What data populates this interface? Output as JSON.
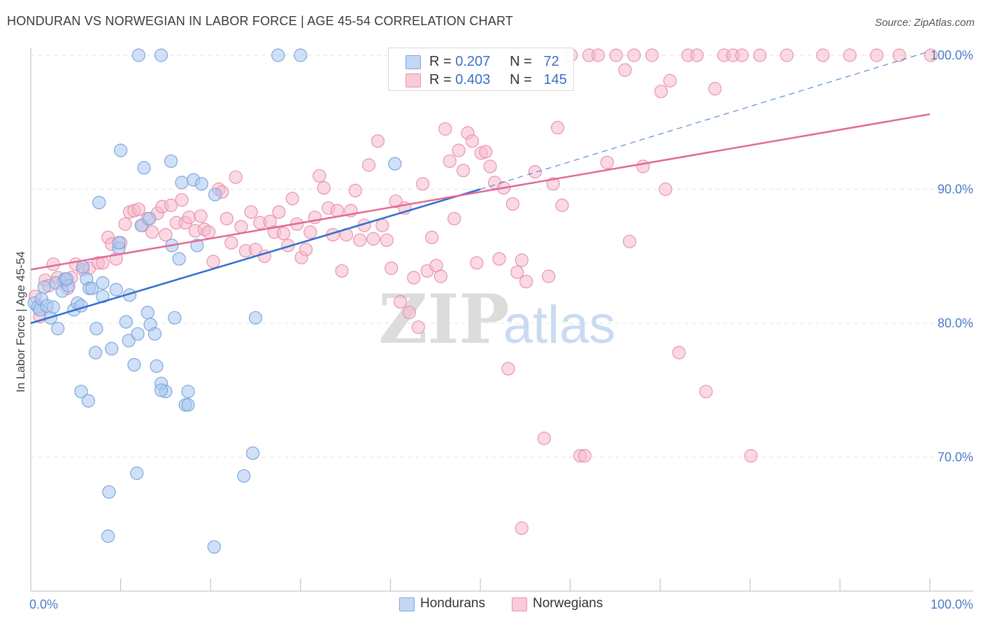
{
  "title": "HONDURAN VS NORWEGIAN IN LABOR FORCE | AGE 45-54 CORRELATION CHART",
  "source": "Source: ZipAtlas.com",
  "watermark": {
    "zip": "ZIP",
    "atlas": "atlas"
  },
  "colors": {
    "hondurans_fill": "#aac8f0",
    "hondurans_stroke": "#7fa6dc",
    "hondurans_line": "#2f6fcf",
    "norwegians_fill": "#f6b9cb",
    "norwegians_stroke": "#ea93ad",
    "norwegians_line": "#e26a97",
    "tick_label": "#4a7cc9",
    "grid": "#e3e3e3"
  },
  "legend_top": {
    "rows": [
      {
        "r_label": "R =",
        "r_value": "0.207",
        "n_label": "N =",
        "n_value": "72"
      },
      {
        "r_label": "R =",
        "r_value": "0.403",
        "n_label": "N =",
        "n_value": "145"
      }
    ]
  },
  "legend_bottom": {
    "items": [
      {
        "label": "Hondurans"
      },
      {
        "label": "Norwegians"
      }
    ]
  },
  "chart_data": {
    "type": "scatter",
    "title": "HONDURAN VS NORWEGIAN IN LABOR FORCE | AGE 45-54 CORRELATION CHART",
    "xlabel": "",
    "ylabel": "In Labor Force | Age 45-54",
    "xlim": [
      0,
      100
    ],
    "ylim": [
      61,
      103
    ],
    "x_tick_labels": [
      {
        "value": 0,
        "label": "0.0%"
      },
      {
        "value": 100,
        "label": "100.0%"
      }
    ],
    "y_tick_labels": [
      {
        "value": 100,
        "label": "100.0%"
      },
      {
        "value": 90,
        "label": "90.0%"
      },
      {
        "value": 80,
        "label": "80.0%"
      },
      {
        "value": 70,
        "label": "70.0%"
      }
    ],
    "grid": true,
    "legend_position": "bottom",
    "series": [
      {
        "name": "Hondurans",
        "r": 0.207,
        "n": 72,
        "trend": {
          "x": [
            0,
            50
          ],
          "y": [
            80.0,
            90.0
          ]
        },
        "trend_extension": {
          "x": [
            50,
            100
          ],
          "y": [
            90.0,
            100.3
          ]
        },
        "points": [
          [
            0.4,
            81.5
          ],
          [
            0.8,
            81.2
          ],
          [
            1.0,
            81.0
          ],
          [
            1.2,
            81.8
          ],
          [
            1.5,
            82.7
          ],
          [
            1.8,
            81.3
          ],
          [
            2.2,
            80.4
          ],
          [
            2.5,
            81.2
          ],
          [
            2.8,
            83.0
          ],
          [
            3.0,
            79.6
          ],
          [
            3.5,
            82.4
          ],
          [
            3.8,
            83.3
          ],
          [
            4.2,
            82.8
          ],
          [
            4.8,
            81.0
          ],
          [
            5.2,
            81.5
          ],
          [
            5.6,
            81.3
          ],
          [
            5.8,
            84.2
          ],
          [
            6.2,
            83.3
          ],
          [
            6.5,
            82.6
          ],
          [
            6.8,
            82.6
          ],
          [
            7.3,
            79.6
          ],
          [
            7.2,
            77.8
          ],
          [
            7.6,
            89.0
          ],
          [
            8.0,
            82.0
          ],
          [
            8.0,
            83.0
          ],
          [
            9.0,
            78.1
          ],
          [
            9.5,
            82.5
          ],
          [
            9.8,
            85.6
          ],
          [
            10.0,
            92.9
          ],
          [
            10.6,
            80.1
          ],
          [
            10.9,
            78.7
          ],
          [
            11.0,
            82.1
          ],
          [
            11.5,
            76.9
          ],
          [
            11.9,
            79.2
          ],
          [
            12.3,
            87.3
          ],
          [
            12.6,
            91.6
          ],
          [
            13.0,
            80.8
          ],
          [
            13.2,
            87.8
          ],
          [
            13.3,
            79.9
          ],
          [
            13.8,
            79.2
          ],
          [
            14.0,
            76.8
          ],
          [
            14.5,
            75.5
          ],
          [
            15.0,
            74.9
          ],
          [
            15.7,
            85.8
          ],
          [
            16.0,
            80.4
          ],
          [
            15.6,
            92.1
          ],
          [
            16.5,
            84.8
          ],
          [
            16.8,
            90.5
          ],
          [
            17.5,
            74.9
          ],
          [
            17.2,
            73.9
          ],
          [
            18.1,
            90.7
          ],
          [
            18.5,
            85.8
          ],
          [
            20.5,
            89.6
          ],
          [
            5.6,
            74.9
          ],
          [
            6.4,
            74.2
          ],
          [
            14.5,
            75.0
          ],
          [
            17.5,
            73.9
          ],
          [
            11.8,
            68.8
          ],
          [
            8.7,
            67.4
          ],
          [
            8.6,
            64.1
          ],
          [
            20.4,
            63.3
          ],
          [
            23.7,
            68.6
          ],
          [
            24.7,
            70.3
          ],
          [
            12.0,
            100.0
          ],
          [
            14.5,
            100.0
          ],
          [
            27.5,
            100.0
          ],
          [
            30.0,
            100.0
          ],
          [
            40.5,
            91.9
          ],
          [
            25.0,
            80.4
          ],
          [
            9.8,
            86.0
          ],
          [
            19.0,
            90.4
          ],
          [
            4.0,
            83.3
          ]
        ]
      },
      {
        "name": "Norwegians",
        "r": 0.403,
        "n": 145,
        "trend": {
          "x": [
            0,
            100
          ],
          "y": [
            84.0,
            95.6
          ]
        },
        "points": [
          [
            0.5,
            82.0
          ],
          [
            1.0,
            80.5
          ],
          [
            1.6,
            83.2
          ],
          [
            2.0,
            82.8
          ],
          [
            2.5,
            84.4
          ],
          [
            3.0,
            83.4
          ],
          [
            3.6,
            83.1
          ],
          [
            4.1,
            82.6
          ],
          [
            4.5,
            83.4
          ],
          [
            5.0,
            84.4
          ],
          [
            5.8,
            84.0
          ],
          [
            6.5,
            84.1
          ],
          [
            7.5,
            84.5
          ],
          [
            8.0,
            84.5
          ],
          [
            8.6,
            86.4
          ],
          [
            9.0,
            85.9
          ],
          [
            9.5,
            84.8
          ],
          [
            10.0,
            86.0
          ],
          [
            10.5,
            87.4
          ],
          [
            11.0,
            88.3
          ],
          [
            11.5,
            88.4
          ],
          [
            12.0,
            88.5
          ],
          [
            12.4,
            87.3
          ],
          [
            13.0,
            87.8
          ],
          [
            13.5,
            86.8
          ],
          [
            14.1,
            88.2
          ],
          [
            14.6,
            88.7
          ],
          [
            15.0,
            86.6
          ],
          [
            15.6,
            88.8
          ],
          [
            16.2,
            87.5
          ],
          [
            16.8,
            89.2
          ],
          [
            17.2,
            87.5
          ],
          [
            17.6,
            87.9
          ],
          [
            18.3,
            86.9
          ],
          [
            18.9,
            88.0
          ],
          [
            19.3,
            87.0
          ],
          [
            19.8,
            86.8
          ],
          [
            20.3,
            84.6
          ],
          [
            20.9,
            90.0
          ],
          [
            21.3,
            89.8
          ],
          [
            21.8,
            87.8
          ],
          [
            22.3,
            86.0
          ],
          [
            22.8,
            90.9
          ],
          [
            23.4,
            87.2
          ],
          [
            23.9,
            85.4
          ],
          [
            24.5,
            88.3
          ],
          [
            25.0,
            85.5
          ],
          [
            25.5,
            87.5
          ],
          [
            26.0,
            85.0
          ],
          [
            26.6,
            87.6
          ],
          [
            27.1,
            86.8
          ],
          [
            27.6,
            88.3
          ],
          [
            28.1,
            86.7
          ],
          [
            28.6,
            85.8
          ],
          [
            29.1,
            89.3
          ],
          [
            29.6,
            87.4
          ],
          [
            30.1,
            84.9
          ],
          [
            30.6,
            85.5
          ],
          [
            31.1,
            86.8
          ],
          [
            31.6,
            87.9
          ],
          [
            32.1,
            91.0
          ],
          [
            32.6,
            90.1
          ],
          [
            33.1,
            88.6
          ],
          [
            33.6,
            86.6
          ],
          [
            34.1,
            88.4
          ],
          [
            34.6,
            83.9
          ],
          [
            35.1,
            86.6
          ],
          [
            35.6,
            88.4
          ],
          [
            36.1,
            89.9
          ],
          [
            36.6,
            86.2
          ],
          [
            37.1,
            87.3
          ],
          [
            37.6,
            91.8
          ],
          [
            38.1,
            86.3
          ],
          [
            38.6,
            93.6
          ],
          [
            39.1,
            87.3
          ],
          [
            39.6,
            86.2
          ],
          [
            40.1,
            84.1
          ],
          [
            40.6,
            89.1
          ],
          [
            41.1,
            81.6
          ],
          [
            41.6,
            88.6
          ],
          [
            42.1,
            80.8
          ],
          [
            42.6,
            83.4
          ],
          [
            43.1,
            79.7
          ],
          [
            43.6,
            90.4
          ],
          [
            44.1,
            83.9
          ],
          [
            44.6,
            86.4
          ],
          [
            45.1,
            84.3
          ],
          [
            45.6,
            83.5
          ],
          [
            46.1,
            94.5
          ],
          [
            46.6,
            92.1
          ],
          [
            47.1,
            87.8
          ],
          [
            47.6,
            92.9
          ],
          [
            48.1,
            91.4
          ],
          [
            48.6,
            94.2
          ],
          [
            49.1,
            93.6
          ],
          [
            49.6,
            84.5
          ],
          [
            50.1,
            92.7
          ],
          [
            50.6,
            92.8
          ],
          [
            51.1,
            91.7
          ],
          [
            51.6,
            90.5
          ],
          [
            52.1,
            84.8
          ],
          [
            52.6,
            90.1
          ],
          [
            53.1,
            76.6
          ],
          [
            53.6,
            88.9
          ],
          [
            54.1,
            83.8
          ],
          [
            54.6,
            84.7
          ],
          [
            55.1,
            83.1
          ],
          [
            56.1,
            91.3
          ],
          [
            57.1,
            71.4
          ],
          [
            57.6,
            83.5
          ],
          [
            58.1,
            90.4
          ],
          [
            58.6,
            94.6
          ],
          [
            59.1,
            88.8
          ],
          [
            60.1,
            100.0
          ],
          [
            61.1,
            70.1
          ],
          [
            61.6,
            70.1
          ],
          [
            62.1,
            100.0
          ],
          [
            63.1,
            100.0
          ],
          [
            64.1,
            92.0
          ],
          [
            65.1,
            100.0
          ],
          [
            66.1,
            98.9
          ],
          [
            66.6,
            86.1
          ],
          [
            67.1,
            100.0
          ],
          [
            68.1,
            91.7
          ],
          [
            69.1,
            100.0
          ],
          [
            70.1,
            97.3
          ],
          [
            70.6,
            90.0
          ],
          [
            71.1,
            98.1
          ],
          [
            72.1,
            77.8
          ],
          [
            73.1,
            100.0
          ],
          [
            74.1,
            100.0
          ],
          [
            75.1,
            74.9
          ],
          [
            76.1,
            97.5
          ],
          [
            77.1,
            100.0
          ],
          [
            78.1,
            100.0
          ],
          [
            79.1,
            100.0
          ],
          [
            80.1,
            70.1
          ],
          [
            81.1,
            100.0
          ],
          [
            84.1,
            100.0
          ],
          [
            88.1,
            100.0
          ],
          [
            91.1,
            100.0
          ],
          [
            94.1,
            100.0
          ],
          [
            96.6,
            100.0
          ],
          [
            100.1,
            100.0
          ],
          [
            54.6,
            64.7
          ]
        ]
      }
    ]
  }
}
